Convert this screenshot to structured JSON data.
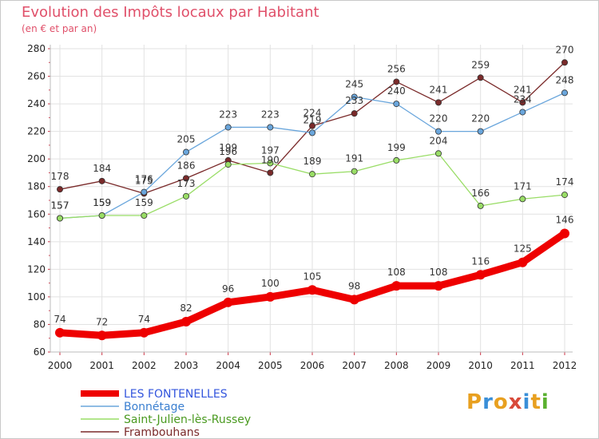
{
  "header": {
    "title": "Evolution des Impôts locaux par Habitant",
    "subtitle": "(en € et par an)"
  },
  "logo": {
    "letters": [
      "P",
      "r",
      "o",
      "x",
      "i",
      "t",
      "i"
    ],
    "colors": [
      "#e8a020",
      "#3a8fd8",
      "#e8a020",
      "#d84a3a",
      "#3a8fd8",
      "#e8a020",
      "#5ab030"
    ]
  },
  "chart_data": {
    "type": "line",
    "title": "Evolution des Impôts locaux par Habitant",
    "subtitle": "(en € et par an)",
    "x": [
      2000,
      2001,
      2002,
      2003,
      2004,
      2005,
      2006,
      2007,
      2008,
      2009,
      2010,
      2011,
      2012
    ],
    "x_tick_labels": [
      "2000",
      "2001",
      "2002",
      "2003",
      "2004",
      "2005",
      "2006",
      "2007",
      "2008",
      "2009",
      "2010",
      "2011",
      "2012"
    ],
    "ylim": [
      60,
      280
    ],
    "y_ticks": [
      60,
      80,
      100,
      120,
      140,
      160,
      180,
      200,
      220,
      240,
      260,
      280
    ],
    "grid": true,
    "legend_position": "bottom-left",
    "series": [
      {
        "name": "LES FONTENELLES",
        "color": "#ee0000",
        "legend_color": "#3355dd",
        "values": [
          74,
          72,
          74,
          82,
          96,
          100,
          105,
          98,
          108,
          108,
          116,
          125,
          146
        ]
      },
      {
        "name": "Bonnétage",
        "color": "#6aa6dc",
        "legend_color": "#3a7fd0",
        "values": [
          157,
          159,
          176,
          205,
          223,
          223,
          219,
          245,
          240,
          220,
          220,
          234,
          248
        ]
      },
      {
        "name": "Saint-Julien-lès-Russey",
        "color": "#99dd66",
        "legend_color": "#4a9a20",
        "values": [
          157,
          159,
          159,
          173,
          196,
          197,
          189,
          191,
          199,
          204,
          166,
          171,
          174
        ]
      },
      {
        "name": "Frambouhans",
        "color": "#7a2a2a",
        "legend_color": "#7a2a2a",
        "values": [
          178,
          184,
          175,
          186,
          199,
          190,
          224,
          233,
          256,
          241,
          259,
          241,
          270
        ]
      }
    ]
  }
}
